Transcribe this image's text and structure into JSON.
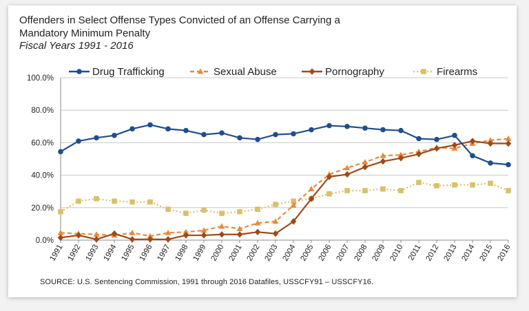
{
  "title": "Offenders in Select Offense Types Convicted of an Offense Carrying a Mandatory Minimum Penalty",
  "subtitle": "Fiscal Years 1991 - 2016",
  "source": "SOURCE:  U.S. Sentencing Commission, 1991 through 2016 Datafiles, USSCFY91 – USSCFY16.",
  "chart_data": {
    "type": "line",
    "title": "Offenders in Select Offense Types Convicted of an Offense Carrying a Mandatory Minimum Penalty",
    "subtitle": "Fiscal Years 1991 - 2016",
    "xlabel": "",
    "ylabel": "",
    "ylim": [
      0,
      100
    ],
    "y_ticks": [
      "0.0%",
      "20.0%",
      "40.0%",
      "60.0%",
      "80.0%",
      "100.0%"
    ],
    "grid": "horizontal",
    "legend_position": "top",
    "categories": [
      "1991",
      "1992",
      "1993",
      "1994",
      "1995",
      "1996",
      "1997",
      "1998",
      "1999",
      "2000",
      "2001",
      "2002",
      "2003",
      "2004",
      "2005",
      "2006",
      "2007",
      "2008",
      "2009",
      "2010",
      "2011",
      "2012",
      "2013",
      "2014",
      "2015",
      "2016"
    ],
    "series": [
      {
        "name": "Drug Trafficking",
        "color": "#1f4e8c",
        "marker": "circle",
        "dash": "solid",
        "values": [
          54.5,
          61.0,
          63.0,
          64.5,
          68.5,
          71.0,
          68.5,
          67.5,
          65.0,
          66.0,
          63.0,
          62.0,
          65.0,
          65.5,
          68.0,
          70.5,
          70.0,
          69.0,
          68.0,
          67.5,
          62.5,
          62.0,
          64.5,
          52.0,
          47.5,
          46.5
        ]
      },
      {
        "name": "Sexual Abuse",
        "color": "#e8893a",
        "marker": "triangle",
        "dash": "dashed",
        "values": [
          4.5,
          4.0,
          3.5,
          3.0,
          4.5,
          2.5,
          4.5,
          5.0,
          6.0,
          8.5,
          7.0,
          10.5,
          11.5,
          21.5,
          31.5,
          40.5,
          44.5,
          48.0,
          52.0,
          52.5,
          54.5,
          57.0,
          56.5,
          59.5,
          61.5,
          62.5
        ]
      },
      {
        "name": "Pornography",
        "color": "#9c4a1a",
        "marker": "diamond",
        "dash": "solid",
        "values": [
          1.5,
          3.0,
          0.5,
          4.0,
          0.5,
          0.5,
          0.5,
          3.0,
          3.0,
          3.5,
          3.5,
          5.0,
          4.0,
          11.5,
          25.5,
          39.0,
          40.5,
          45.0,
          48.5,
          50.5,
          53.0,
          56.5,
          58.5,
          61.0,
          59.5,
          59.5
        ]
      },
      {
        "name": "Firearms",
        "color": "#d9c06a",
        "marker": "square",
        "dash": "dotted",
        "values": [
          17.5,
          24.0,
          25.5,
          24.0,
          23.5,
          23.5,
          19.0,
          16.5,
          18.5,
          16.5,
          17.5,
          19.0,
          22.0,
          24.0,
          25.5,
          28.5,
          30.5,
          30.5,
          31.5,
          30.5,
          35.5,
          33.5,
          34.0,
          34.0,
          35.0,
          30.5
        ]
      }
    ]
  }
}
